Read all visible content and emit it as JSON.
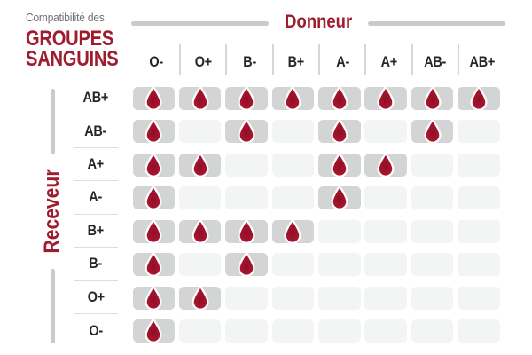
{
  "title": {
    "line1": "Compatibilité des",
    "line2": "GROUPES",
    "line3": "SANGUINS"
  },
  "axes": {
    "donor_label": "Donneur",
    "receiver_label": "Receveur"
  },
  "icons": {
    "compatible_marker": "blood-drop-icon"
  },
  "colors": {
    "accent_red": "#9f1c2f",
    "drop_red_core": "#8e0f26",
    "drop_red_mid": "#a8142e",
    "drop_red_edge": "#bb2039",
    "cell_active": "#d3d5d5",
    "cell_inactive": "#f3f4f4",
    "line_gray": "#c8cacb",
    "text_gray": "#6f7073",
    "text_dark": "#262626"
  },
  "chart_data": {
    "type": "heatmap",
    "title": "Compatibilité des groupes sanguins",
    "xlabel": "Donneur",
    "ylabel": "Receveur",
    "columns": [
      "O-",
      "O+",
      "B-",
      "B+",
      "A-",
      "A+",
      "AB-",
      "AB+"
    ],
    "rows": [
      "AB+",
      "AB-",
      "A+",
      "A-",
      "B+",
      "B-",
      "O+",
      "O-"
    ],
    "matrix": [
      [
        1,
        1,
        1,
        1,
        1,
        1,
        1,
        1
      ],
      [
        1,
        0,
        1,
        0,
        1,
        0,
        1,
        0
      ],
      [
        1,
        1,
        0,
        0,
        1,
        1,
        0,
        0
      ],
      [
        1,
        0,
        0,
        0,
        1,
        0,
        0,
        0
      ],
      [
        1,
        1,
        1,
        1,
        0,
        0,
        0,
        0
      ],
      [
        1,
        0,
        1,
        0,
        0,
        0,
        0,
        0
      ],
      [
        1,
        1,
        0,
        0,
        0,
        0,
        0,
        0
      ],
      [
        1,
        0,
        0,
        0,
        0,
        0,
        0,
        0
      ]
    ],
    "legend": "blood drop = donor column compatible with receiver row",
    "grid": "rounded cells; active cells darker gray with red drop"
  }
}
